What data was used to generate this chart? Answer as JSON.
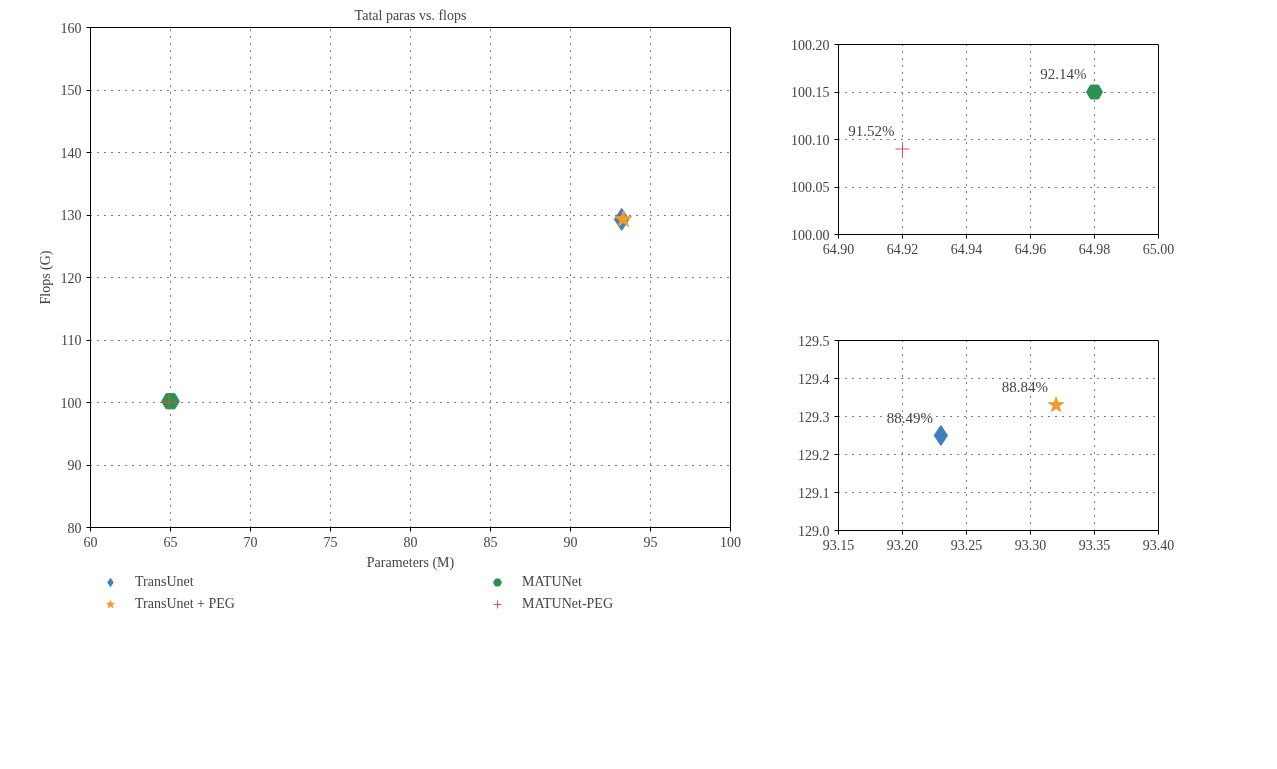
{
  "chart_data": [
    {
      "type": "scatter",
      "title": "Tatal paras vs. flops",
      "xlabel": "Parameters (M)",
      "ylabel": "Flops (G)",
      "xlim": [
        60,
        100
      ],
      "ylim": [
        80,
        160
      ],
      "xticks": [
        60,
        65,
        70,
        75,
        80,
        85,
        90,
        95,
        100
      ],
      "yticks": [
        80,
        90,
        100,
        110,
        120,
        130,
        140,
        150,
        160
      ],
      "grid": true,
      "legend": "bottom",
      "series": [
        {
          "name": "TransUnet",
          "color": "#3f7fbf",
          "marker": "diamond",
          "x": [
            93.2
          ],
          "values": [
            129.3
          ]
        },
        {
          "name": "TransUnet + PEG",
          "color": "#f39a2a",
          "marker": "star",
          "x": [
            93.3
          ],
          "values": [
            129.3
          ]
        },
        {
          "name": "MATUNet",
          "color": "#2a9150",
          "x": [
            65.0
          ],
          "values": [
            100.2
          ]
        },
        {
          "name": "MATUNet-PEG",
          "color": "#d9534f",
          "marker": "cross",
          "x": [
            64.9
          ],
          "values": [
            100.1
          ]
        }
      ]
    },
    {
      "type": "scatter",
      "xlim": [
        64.9,
        65.0
      ],
      "ylim": [
        100.0,
        100.2
      ],
      "xticks": [
        {
          "value": 64.9,
          "label": "64.90"
        },
        {
          "value": 64.92,
          "label": "64.92"
        },
        {
          "value": 64.94,
          "label": "64.94"
        },
        {
          "value": 64.96,
          "label": "64.96"
        },
        {
          "value": 64.98,
          "label": "64.98"
        },
        {
          "value": 65.0,
          "label": "65.00"
        }
      ],
      "yticks": [
        {
          "value": 100.0,
          "label": "100.00"
        },
        {
          "value": 100.05,
          "label": "100.05"
        },
        {
          "value": 100.1,
          "label": "100.10"
        },
        {
          "value": 100.15,
          "label": "100.15"
        },
        {
          "value": 100.2,
          "label": "100.20"
        }
      ],
      "grid": true,
      "series": [
        {
          "color": "#2a9150",
          "x": [
            64.98
          ],
          "values": [
            100.15
          ]
        },
        {
          "color": "#d9534f",
          "marker": "cross",
          "x": [
            64.92
          ],
          "values": [
            100.09
          ]
        }
      ],
      "annotations": [
        {
          "text": "92.14%",
          "x": 64.98,
          "y": 100.15
        },
        {
          "text": "91.52%",
          "x": 64.92,
          "y": 100.09
        }
      ]
    },
    {
      "type": "scatter",
      "xlim": [
        93.15,
        93.4
      ],
      "ylim": [
        129.0,
        129.5
      ],
      "xticks": [
        {
          "value": 93.15,
          "label": "93.15"
        },
        {
          "value": 93.2,
          "label": "93.20"
        },
        {
          "value": 93.25,
          "label": "93.25"
        },
        {
          "value": 93.3,
          "label": "93.30"
        },
        {
          "value": 93.35,
          "label": "93.35"
        },
        {
          "value": 93.4,
          "label": "93.40"
        }
      ],
      "yticks": [
        {
          "value": 129.0,
          "label": "129.0"
        },
        {
          "value": 129.1,
          "label": "129.1"
        },
        {
          "value": 129.2,
          "label": "129.2"
        },
        {
          "value": 129.3,
          "label": "129.3"
        },
        {
          "value": 129.4,
          "label": "129.4"
        },
        {
          "value": 129.5,
          "label": "129.5"
        }
      ],
      "grid": true,
      "series": [
        {
          "color": "#3f7fbf",
          "marker": "diamond",
          "x": [
            93.23
          ],
          "values": [
            129.25
          ]
        },
        {
          "color": "#f39a2a",
          "marker": "star",
          "x": [
            93.32
          ],
          "values": [
            129.33
          ]
        }
      ],
      "annotations": [
        {
          "text": "88.49%",
          "x": 93.23,
          "y": 129.25
        },
        {
          "text": "88.84%",
          "x": 93.32,
          "y": 129.33
        }
      ]
    }
  ]
}
